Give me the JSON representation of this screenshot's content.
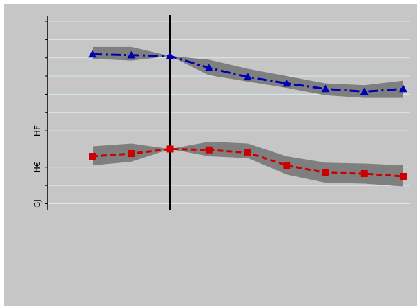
{
  "chart_data": {
    "type": "line",
    "title": "",
    "xlabel": "",
    "ylabel": "",
    "x": [
      1,
      2,
      3,
      4,
      5,
      6,
      7,
      8,
      9
    ],
    "xlim": [
      0,
      10
    ],
    "ylim": [
      -0.2,
      10.3
    ],
    "y_ticks": [
      0,
      1,
      2,
      3,
      4,
      5,
      6,
      7,
      8,
      9,
      10
    ],
    "y_tick_labels": [
      {
        "value": 0,
        "text": "GJ"
      },
      {
        "value": 2,
        "text": "H€"
      },
      {
        "value": 4,
        "text": "HF"
      }
    ],
    "grid": true,
    "vertical_marker_x": 3,
    "series": [
      {
        "marker": "triangle",
        "line_style": "dash-dot",
        "color": "#0000b4",
        "values": [
          8.2,
          8.15,
          8.1,
          7.45,
          6.95,
          6.6,
          6.3,
          6.15,
          6.3
        ],
        "band_lower": [
          7.95,
          7.85,
          8.1,
          7.05,
          6.7,
          6.35,
          5.95,
          5.8,
          5.8
        ],
        "band_upper": [
          8.6,
          8.6,
          8.1,
          7.9,
          7.4,
          7.0,
          6.6,
          6.5,
          6.75
        ]
      },
      {
        "marker": "square",
        "line_style": "dashed",
        "color": "#cc0000",
        "values": [
          2.6,
          2.75,
          3.0,
          2.95,
          2.8,
          2.1,
          1.7,
          1.65,
          1.5
        ],
        "band_lower": [
          2.1,
          2.3,
          3.0,
          2.6,
          2.5,
          1.6,
          1.15,
          1.1,
          0.95
        ],
        "band_upper": [
          3.15,
          3.3,
          3.0,
          3.4,
          3.3,
          2.6,
          2.25,
          2.2,
          2.1
        ]
      }
    ],
    "colors": {
      "background": "#c6c6c6",
      "gridline": "#d7ecec",
      "band": "#7f7f7f",
      "axis": "#000000",
      "marker_line": "#000000"
    }
  }
}
